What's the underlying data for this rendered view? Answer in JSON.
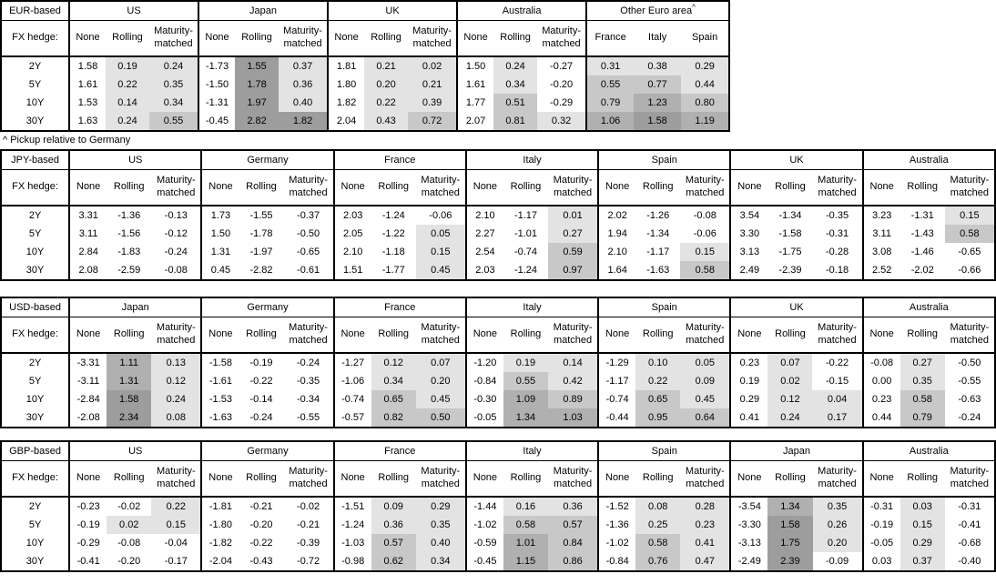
{
  "footnote": "^ Pickup relative to Germany",
  "fx_hedge_label": "FX hedge:",
  "row_labels": [
    "2Y",
    "5Y",
    "10Y",
    "30Y"
  ],
  "palette": {
    "border": "#000000",
    "bin_light": "#e3e3e3",
    "bin_medium": "#c8c8c8",
    "bin_meddark": "#b0b0b0",
    "bin_dark": "#9d9d9d"
  },
  "tables": [
    {
      "label": "EUR-based",
      "groups": [
        {
          "name": "US",
          "cols": [
            "None",
            "Rolling",
            "Maturity-matched"
          ],
          "rows": [
            [
              "1.58",
              "0.19",
              "0.24"
            ],
            [
              "1.61",
              "0.22",
              "0.35"
            ],
            [
              "1.53",
              "0.14",
              "0.34"
            ],
            [
              "1.63",
              "0.24",
              "0.55"
            ]
          ]
        },
        {
          "name": "Japan",
          "cols": [
            "None",
            "Rolling",
            "Maturity-matched"
          ],
          "rows": [
            [
              "-1.73",
              "1.55",
              "0.37"
            ],
            [
              "-1.50",
              "1.78",
              "0.36"
            ],
            [
              "-1.31",
              "1.97",
              "0.40"
            ],
            [
              "-0.45",
              "2.82",
              "1.82"
            ]
          ]
        },
        {
          "name": "UK",
          "cols": [
            "None",
            "Rolling",
            "Maturity-matched"
          ],
          "rows": [
            [
              "1.81",
              "0.21",
              "0.02"
            ],
            [
              "1.80",
              "0.20",
              "0.21"
            ],
            [
              "1.82",
              "0.22",
              "0.39"
            ],
            [
              "2.04",
              "0.43",
              "0.72"
            ]
          ]
        },
        {
          "name": "Australia",
          "cols": [
            "None",
            "Rolling",
            "Maturity-matched"
          ],
          "rows": [
            [
              "1.50",
              "0.24",
              "-0.27"
            ],
            [
              "1.61",
              "0.34",
              "-0.20"
            ],
            [
              "1.77",
              "0.51",
              "-0.29"
            ],
            [
              "2.07",
              "0.81",
              "0.32"
            ]
          ]
        },
        {
          "name": "Other Euro area",
          "sup": "^",
          "shade_all": true,
          "cols": [
            "France",
            "Italy",
            "Spain"
          ],
          "rows": [
            [
              "0.31",
              "0.38",
              "0.29"
            ],
            [
              "0.55",
              "0.77",
              "0.44"
            ],
            [
              "0.79",
              "1.23",
              "0.80"
            ],
            [
              "1.06",
              "1.58",
              "1.19"
            ]
          ]
        }
      ]
    },
    {
      "label": "JPY-based",
      "groups": [
        {
          "name": "US",
          "cols": [
            "None",
            "Rolling",
            "Maturity-matched"
          ],
          "rows": [
            [
              "3.31",
              "-1.36",
              "-0.13"
            ],
            [
              "3.11",
              "-1.56",
              "-0.12"
            ],
            [
              "2.84",
              "-1.83",
              "-0.24"
            ],
            [
              "2.08",
              "-2.59",
              "-0.08"
            ]
          ]
        },
        {
          "name": "Germany",
          "cols": [
            "None",
            "Rolling",
            "Maturity-matched"
          ],
          "rows": [
            [
              "1.73",
              "-1.55",
              "-0.37"
            ],
            [
              "1.50",
              "-1.78",
              "-0.50"
            ],
            [
              "1.31",
              "-1.97",
              "-0.65"
            ],
            [
              "0.45",
              "-2.82",
              "-0.61"
            ]
          ]
        },
        {
          "name": "France",
          "cols": [
            "None",
            "Rolling",
            "Maturity-matched"
          ],
          "rows": [
            [
              "2.03",
              "-1.24",
              "-0.06"
            ],
            [
              "2.05",
              "-1.22",
              "0.05"
            ],
            [
              "2.10",
              "-1.18",
              "0.15"
            ],
            [
              "1.51",
              "-1.77",
              "0.45"
            ]
          ]
        },
        {
          "name": "Italy",
          "cols": [
            "None",
            "Rolling",
            "Maturity-matched"
          ],
          "rows": [
            [
              "2.10",
              "-1.17",
              "0.01"
            ],
            [
              "2.27",
              "-1.01",
              "0.27"
            ],
            [
              "2.54",
              "-0.74",
              "0.59"
            ],
            [
              "2.03",
              "-1.24",
              "0.97"
            ]
          ]
        },
        {
          "name": "Spain",
          "cols": [
            "None",
            "Rolling",
            "Maturity-matched"
          ],
          "rows": [
            [
              "2.02",
              "-1.26",
              "-0.08"
            ],
            [
              "1.94",
              "-1.34",
              "-0.06"
            ],
            [
              "2.10",
              "-1.17",
              "0.15"
            ],
            [
              "1.64",
              "-1.63",
              "0.58"
            ]
          ]
        },
        {
          "name": "UK",
          "cols": [
            "None",
            "Rolling",
            "Maturity-matched"
          ],
          "rows": [
            [
              "3.54",
              "-1.34",
              "-0.35"
            ],
            [
              "3.30",
              "-1.58",
              "-0.31"
            ],
            [
              "3.13",
              "-1.75",
              "-0.28"
            ],
            [
              "2.49",
              "-2.39",
              "-0.18"
            ]
          ]
        },
        {
          "name": "Australia",
          "cols": [
            "None",
            "Rolling",
            "Maturity-matched"
          ],
          "rows": [
            [
              "3.23",
              "-1.31",
              "0.15"
            ],
            [
              "3.11",
              "-1.43",
              "0.58"
            ],
            [
              "3.08",
              "-1.46",
              "-0.65"
            ],
            [
              "2.52",
              "-2.02",
              "-0.66"
            ]
          ]
        }
      ]
    },
    {
      "label": "USD-based",
      "groups": [
        {
          "name": "Japan",
          "cols": [
            "None",
            "Rolling",
            "Maturity-matched"
          ],
          "rows": [
            [
              "-3.31",
              "1.11",
              "0.13"
            ],
            [
              "-3.11",
              "1.31",
              "0.12"
            ],
            [
              "-2.84",
              "1.58",
              "0.24"
            ],
            [
              "-2.08",
              "2.34",
              "0.08"
            ]
          ]
        },
        {
          "name": "Germany",
          "cols": [
            "None",
            "Rolling",
            "Maturity-matched"
          ],
          "rows": [
            [
              "-1.58",
              "-0.19",
              "-0.24"
            ],
            [
              "-1.61",
              "-0.22",
              "-0.35"
            ],
            [
              "-1.53",
              "-0.14",
              "-0.34"
            ],
            [
              "-1.63",
              "-0.24",
              "-0.55"
            ]
          ]
        },
        {
          "name": "France",
          "cols": [
            "None",
            "Rolling",
            "Maturity-matched"
          ],
          "rows": [
            [
              "-1.27",
              "0.12",
              "0.07"
            ],
            [
              "-1.06",
              "0.34",
              "0.20"
            ],
            [
              "-0.74",
              "0.65",
              "0.45"
            ],
            [
              "-0.57",
              "0.82",
              "0.50"
            ]
          ]
        },
        {
          "name": "Italy",
          "cols": [
            "None",
            "Rolling",
            "Maturity-matched"
          ],
          "rows": [
            [
              "-1.20",
              "0.19",
              "0.14"
            ],
            [
              "-0.84",
              "0.55",
              "0.42"
            ],
            [
              "-0.30",
              "1.09",
              "0.89"
            ],
            [
              "-0.05",
              "1.34",
              "1.03"
            ]
          ]
        },
        {
          "name": "Spain",
          "cols": [
            "None",
            "Rolling",
            "Maturity-matched"
          ],
          "rows": [
            [
              "-1.29",
              "0.10",
              "0.05"
            ],
            [
              "-1.17",
              "0.22",
              "0.09"
            ],
            [
              "-0.74",
              "0.65",
              "0.45"
            ],
            [
              "-0.44",
              "0.95",
              "0.64"
            ]
          ]
        },
        {
          "name": "UK",
          "cols": [
            "None",
            "Rolling",
            "Maturity-matched"
          ],
          "rows": [
            [
              "0.23",
              "0.07",
              "-0.22"
            ],
            [
              "0.19",
              "0.02",
              "-0.15"
            ],
            [
              "0.29",
              "0.12",
              "0.04"
            ],
            [
              "0.41",
              "0.24",
              "0.17"
            ]
          ]
        },
        {
          "name": "Australia",
          "cols": [
            "None",
            "Rolling",
            "Maturity-matched"
          ],
          "rows": [
            [
              "-0.08",
              "0.27",
              "-0.50"
            ],
            [
              "0.00",
              "0.35",
              "-0.55"
            ],
            [
              "0.23",
              "0.58",
              "-0.63"
            ],
            [
              "0.44",
              "0.79",
              "-0.24"
            ]
          ]
        }
      ]
    },
    {
      "label": "GBP-based",
      "groups": [
        {
          "name": "US",
          "cols": [
            "None",
            "Rolling",
            "Maturity-matched"
          ],
          "rows": [
            [
              "-0.23",
              "-0.02",
              "0.22"
            ],
            [
              "-0.19",
              "0.02",
              "0.15"
            ],
            [
              "-0.29",
              "-0.08",
              "-0.04"
            ],
            [
              "-0.41",
              "-0.20",
              "-0.17"
            ]
          ]
        },
        {
          "name": "Germany",
          "cols": [
            "None",
            "Rolling",
            "Maturity-matched"
          ],
          "rows": [
            [
              "-1.81",
              "-0.21",
              "-0.02"
            ],
            [
              "-1.80",
              "-0.20",
              "-0.21"
            ],
            [
              "-1.82",
              "-0.22",
              "-0.39"
            ],
            [
              "-2.04",
              "-0.43",
              "-0.72"
            ]
          ]
        },
        {
          "name": "France",
          "cols": [
            "None",
            "Rolling",
            "Maturity-matched"
          ],
          "rows": [
            [
              "-1.51",
              "0.09",
              "0.29"
            ],
            [
              "-1.24",
              "0.36",
              "0.35"
            ],
            [
              "-1.03",
              "0.57",
              "0.40"
            ],
            [
              "-0.98",
              "0.62",
              "0.34"
            ]
          ]
        },
        {
          "name": "Italy",
          "cols": [
            "None",
            "Rolling",
            "Maturity-matched"
          ],
          "rows": [
            [
              "-1.44",
              "0.16",
              "0.36"
            ],
            [
              "-1.02",
              "0.58",
              "0.57"
            ],
            [
              "-0.59",
              "1.01",
              "0.84"
            ],
            [
              "-0.45",
              "1.15",
              "0.86"
            ]
          ]
        },
        {
          "name": "Spain",
          "cols": [
            "None",
            "Rolling",
            "Maturity-matched"
          ],
          "rows": [
            [
              "-1.52",
              "0.08",
              "0.28"
            ],
            [
              "-1.36",
              "0.25",
              "0.23"
            ],
            [
              "-1.02",
              "0.58",
              "0.41"
            ],
            [
              "-0.84",
              "0.76",
              "0.47"
            ]
          ]
        },
        {
          "name": "Japan",
          "cols": [
            "None",
            "Rolling",
            "Maturity-matched"
          ],
          "rows": [
            [
              "-3.54",
              "1.34",
              "0.35"
            ],
            [
              "-3.30",
              "1.58",
              "0.26"
            ],
            [
              "-3.13",
              "1.75",
              "0.20"
            ],
            [
              "-2.49",
              "2.39",
              "-0.09"
            ]
          ]
        },
        {
          "name": "Australia",
          "cols": [
            "None",
            "Rolling",
            "Maturity-matched"
          ],
          "rows": [
            [
              "-0.31",
              "0.03",
              "-0.31"
            ],
            [
              "-0.19",
              "0.15",
              "-0.41"
            ],
            [
              "-0.05",
              "0.29",
              "-0.68"
            ],
            [
              "0.03",
              "0.37",
              "-0.40"
            ]
          ]
        }
      ]
    }
  ]
}
